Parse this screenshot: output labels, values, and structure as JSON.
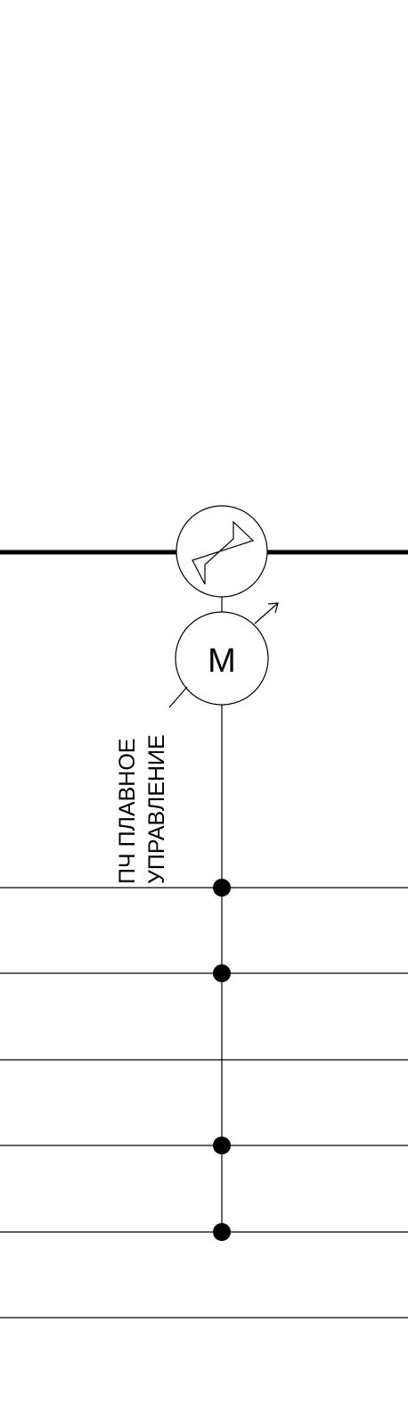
{
  "diagram": {
    "motor_label": "M",
    "control_label": {
      "line1": "ПЧ ПЛАВНОЕ",
      "line2": "УПРАВЛЕНИЕ"
    }
  },
  "colors": {
    "line": "#000000",
    "background": "#ffffff"
  }
}
